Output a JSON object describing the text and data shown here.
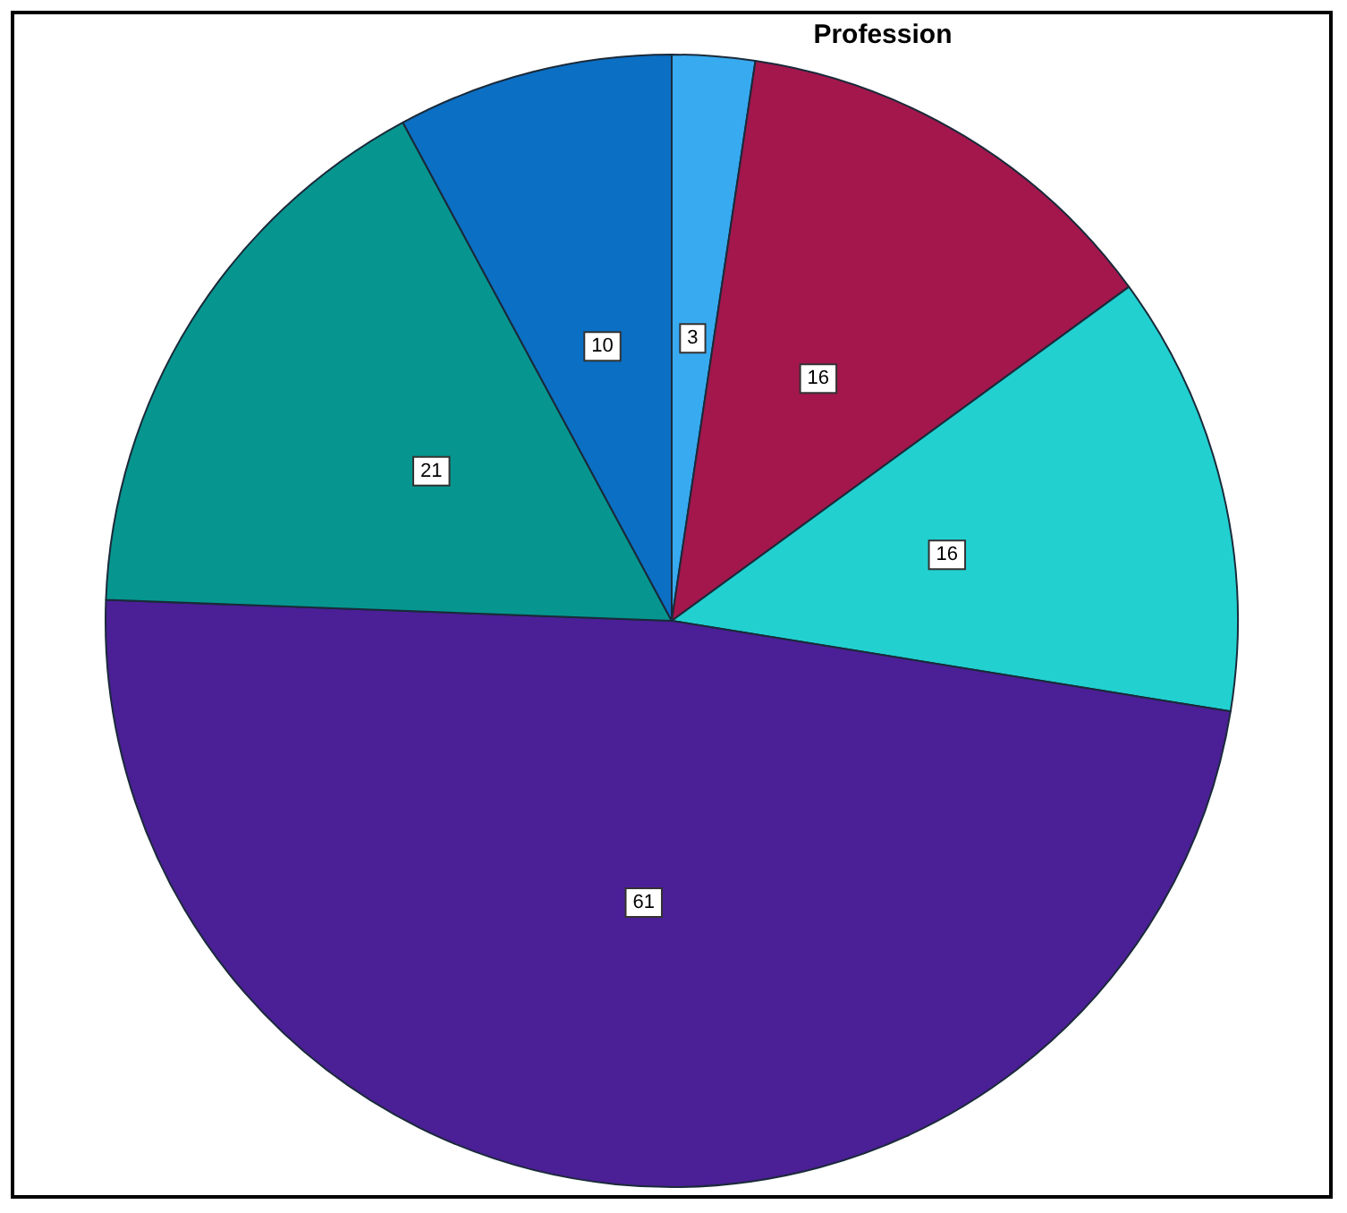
{
  "chart_data": {
    "type": "pie",
    "title": "Profession",
    "categories": [
      null,
      null,
      null,
      null,
      null,
      null
    ],
    "values": [
      3,
      16,
      16,
      61,
      21,
      10
    ],
    "colors": [
      "#38aaf0",
      "#a3174c",
      "#22d0d0",
      "#4b1f96",
      "#06968f",
      "#0b6fc4"
    ],
    "data_labels": true,
    "legend": false
  }
}
